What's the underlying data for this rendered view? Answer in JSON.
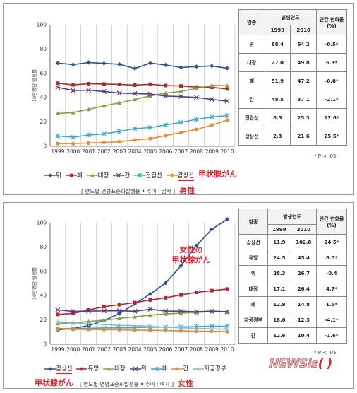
{
  "chart_data": [
    {
      "type": "line",
      "ylabel": "10만명당 발생률",
      "x": [
        "1999",
        "2000",
        "2001",
        "2002",
        "2003",
        "2004",
        "2005",
        "2006",
        "2007",
        "2008",
        "2009",
        "2010"
      ],
      "ylim": [
        0,
        100
      ],
      "yticks": [
        0,
        20,
        40,
        60,
        80,
        100
      ],
      "grid": "vertical",
      "series": [
        {
          "name": "위",
          "color": "#2b4f9e",
          "marker": "diamond",
          "values": [
            68.4,
            67.2,
            68.9,
            68.2,
            67.5,
            64.0,
            68.4,
            66.9,
            64.9,
            65.6,
            66.1,
            64.2
          ]
        },
        {
          "name": "폐",
          "color": "#b8242a",
          "marker": "square",
          "values": [
            51.9,
            50.5,
            51.5,
            51.2,
            50.9,
            50.3,
            51.0,
            50.0,
            49.6,
            48.7,
            48.5,
            47.2
          ]
        },
        {
          "name": "대장",
          "color": "#7ea43d",
          "marker": "triangle",
          "values": [
            27.0,
            27.8,
            30.4,
            33.3,
            35.7,
            38.6,
            41.5,
            43.7,
            45.2,
            47.6,
            50.1,
            49.8
          ]
        },
        {
          "name": "간",
          "color": "#5c3a86",
          "marker": "x",
          "values": [
            48.5,
            45.9,
            46.2,
            45.1,
            43.8,
            43.4,
            43.0,
            41.3,
            40.9,
            40.2,
            38.6,
            37.1
          ]
        },
        {
          "name": "전립선",
          "color": "#3aa8c8",
          "marker": "star",
          "values": [
            8.5,
            7.5,
            9.3,
            10.2,
            12.2,
            14.6,
            15.4,
            17.6,
            19.7,
            22.1,
            24.1,
            25.3
          ]
        },
        {
          "name": "갑상선",
          "color": "#ee8a2a",
          "marker": "circle",
          "values": [
            2.3,
            2.2,
            2.7,
            3.1,
            3.8,
            5.2,
            6.3,
            8.8,
            11.3,
            13.9,
            17.4,
            21.6
          ]
        }
      ],
      "legend_note": "甲状腺がん",
      "source": "[ 연도별 연령표준화발생률 • 추이 : 남자 ]",
      "source_note": "男性",
      "table": {
        "headers": [
          "암종",
          "발생연도",
          "연간 변화율 (%)"
        ],
        "subheaders": [
          "1999",
          "2010"
        ],
        "rows": [
          {
            "name": "위",
            "v1999": "68.4",
            "v2010": "64.2",
            "change": "-0.5*"
          },
          {
            "name": "대장",
            "v1999": "27.0",
            "v2010": "49.8",
            "change": "6.3*"
          },
          {
            "name": "폐",
            "v1999": "51.9",
            "v2010": "47.2",
            "change": "-0.8*"
          },
          {
            "name": "간",
            "v1999": "48.5",
            "v2010": "37.1",
            "change": "-2.1*"
          },
          {
            "name": "전립선",
            "v1999": "8.5",
            "v2010": "25.3",
            "change": "12.6*"
          },
          {
            "name": "갑상선",
            "v1999": "2.3",
            "v2010": "21.6",
            "change": "25.5*"
          }
        ],
        "footnote": "* P < .05"
      }
    },
    {
      "type": "line",
      "ylabel": "10만명당 발생률",
      "x": [
        "1999",
        "2000",
        "2001",
        "2002",
        "2003",
        "2004",
        "2005",
        "2006",
        "2007",
        "2008",
        "2009",
        "2010"
      ],
      "ylim": [
        0,
        100
      ],
      "yticks": [
        0,
        20,
        40,
        60,
        80,
        100
      ],
      "grid": "vertical",
      "annotation": "女性の\n甲状腺がん",
      "series": [
        {
          "name": "갑상선",
          "color": "#2b4f9e",
          "marker": "diamond",
          "values": [
            11.9,
            13.0,
            15.4,
            19.5,
            25.2,
            33.2,
            41.3,
            50.4,
            64.5,
            81.1,
            94.6,
            102.8
          ]
        },
        {
          "name": "유방",
          "color": "#b8242a",
          "marker": "square",
          "values": [
            24.5,
            25.3,
            28.2,
            30.9,
            32.5,
            34.3,
            36.4,
            38.2,
            40.6,
            42.7,
            44.1,
            45.4
          ]
        },
        {
          "name": "대장",
          "color": "#7ea43d",
          "marker": "triangle",
          "values": [
            17.1,
            17.6,
            18.7,
            19.8,
            21.2,
            22.6,
            23.9,
            24.9,
            25.6,
            26.1,
            26.9,
            26.4
          ]
        },
        {
          "name": "위",
          "color": "#5c3a86",
          "marker": "x",
          "values": [
            28.3,
            27.0,
            27.3,
            27.4,
            27.6,
            27.1,
            28.8,
            27.3,
            27.2,
            26.7,
            27.3,
            26.7
          ]
        },
        {
          "name": "폐",
          "color": "#3aa8c8",
          "marker": "star",
          "values": [
            12.9,
            13.0,
            13.2,
            13.4,
            13.5,
            13.6,
            14.1,
            14.0,
            14.2,
            14.5,
            14.9,
            14.8
          ]
        },
        {
          "name": "간",
          "color": "#ee8a2a",
          "marker": "circle",
          "values": [
            12.6,
            12.3,
            12.2,
            12.1,
            11.9,
            11.6,
            11.5,
            11.3,
            11.0,
            10.8,
            10.7,
            10.4
          ]
        },
        {
          "name": "자궁경부",
          "color": "#8fb4d8",
          "marker": "plus",
          "values": [
            18.6,
            17.6,
            16.9,
            16.2,
            15.6,
            15.3,
            14.7,
            14.0,
            13.6,
            13.1,
            12.7,
            12.3
          ]
        }
      ],
      "legend_note": "甲状腺がん",
      "source": "[ 연도별 연령표준화발생률 • 추이 : 여자 ]",
      "source_note": "女性",
      "table": {
        "headers": [
          "암종",
          "발생연도",
          "연간 변화율 (%)"
        ],
        "subheaders": [
          "1999",
          "2010"
        ],
        "rows": [
          {
            "name": "갑상선",
            "v1999": "11.9",
            "v2010": "102.8",
            "change": "24.5*"
          },
          {
            "name": "유방",
            "v1999": "24.5",
            "v2010": "45.4",
            "change": "6.0*"
          },
          {
            "name": "위",
            "v1999": "28.3",
            "v2010": "26.7",
            "change": "-0.4"
          },
          {
            "name": "대장",
            "v1999": "17.1",
            "v2010": "26.4",
            "change": "4.7*"
          },
          {
            "name": "폐",
            "v1999": "12.9",
            "v2010": "14.8",
            "change": "1.5*"
          },
          {
            "name": "자궁경부",
            "v1999": "18.6",
            "v2010": "12.3",
            "change": "-4.1*"
          },
          {
            "name": "간",
            "v1999": "12.6",
            "v2010": "10.4",
            "change": "-1.6*"
          }
        ],
        "footnote": "* P < .05"
      }
    }
  ],
  "logo": {
    "text": "NEWSis",
    "mark": "( )"
  }
}
